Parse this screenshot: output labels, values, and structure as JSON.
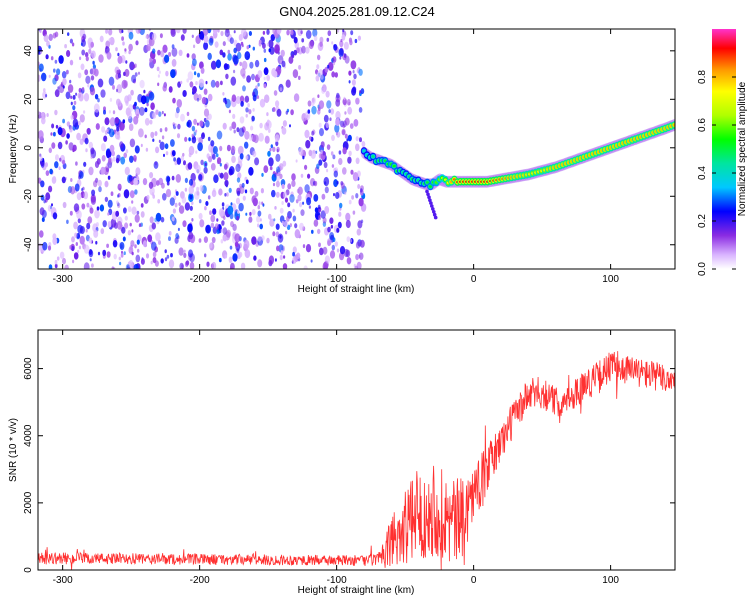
{
  "figure": {
    "title": "GN04.2025.281.09.12.C24"
  },
  "colors": {
    "snr_line": "#ff3030",
    "axis": "#000000",
    "spectro_noise": "#7a2cff"
  },
  "chart_data": [
    {
      "type": "heatmap",
      "name": "spectrogram",
      "xlabel": "Height of straight line (km)",
      "ylabel": "Frequency (Hz)",
      "xlim": [
        -318,
        147
      ],
      "ylim": [
        -50,
        49
      ],
      "xticks": [
        -300,
        -200,
        -100,
        0,
        100
      ],
      "yticks": [
        -40,
        -20,
        0,
        20,
        40
      ],
      "noise_region_x": [
        -318,
        -80
      ],
      "ridge": {
        "x": [
          -80,
          -75,
          -70,
          -65,
          -60,
          -55,
          -50,
          -45,
          -40,
          -35,
          -30,
          -25,
          -20,
          -15,
          -10,
          0,
          10,
          20,
          30,
          40,
          50,
          60,
          70,
          80,
          90,
          100,
          110,
          120,
          130,
          140,
          147
        ],
        "freq": [
          -2,
          -4,
          -5,
          -6,
          -7,
          -9,
          -11,
          -13,
          -14,
          -15,
          -15,
          -13,
          -14,
          -14,
          -14,
          -14,
          -14,
          -13,
          -12,
          -11,
          -9.5,
          -8,
          -6,
          -4,
          -2,
          0,
          2,
          4,
          6,
          8,
          9.5
        ],
        "amplitude": [
          0.4,
          0.45,
          0.5,
          0.5,
          0.55,
          0.5,
          0.45,
          0.5,
          0.45,
          0.5,
          0.55,
          0.6,
          0.7,
          0.85,
          0.9,
          0.9,
          0.9,
          0.85,
          0.8,
          0.75,
          0.75,
          0.8,
          0.8,
          0.8,
          0.8,
          0.8,
          0.8,
          0.8,
          0.8,
          0.8,
          0.8
        ]
      },
      "colorbar": {
        "label": "Normalized spectral amplitude",
        "range": [
          0.0,
          1.0
        ],
        "ticks": [
          "0.0",
          "0.2",
          "0.4",
          "0.6",
          "0.8"
        ]
      }
    },
    {
      "type": "line",
      "name": "snr",
      "xlabel": "Height of straight line (km)",
      "ylabel": "SNR (10 * v/v)",
      "xlim": [
        -318,
        147
      ],
      "ylim": [
        0,
        7150
      ],
      "xticks": [
        -300,
        -200,
        -100,
        0,
        100
      ],
      "yticks": [
        0,
        2000,
        4000,
        6000
      ],
      "envelope": {
        "x": [
          -318,
          -250,
          -150,
          -80,
          -66,
          -60,
          -50,
          -40,
          -30,
          -20,
          -10,
          0,
          10,
          20,
          30,
          40,
          50,
          60,
          70,
          80,
          90,
          100,
          110,
          120,
          130,
          140,
          147
        ],
        "mean": [
          350,
          330,
          300,
          280,
          320,
          900,
          1300,
          1600,
          1900,
          1500,
          1400,
          2300,
          3000,
          3800,
          4600,
          5200,
          5300,
          5000,
          5100,
          5500,
          5700,
          6050,
          6000,
          5900,
          5800,
          5700,
          5700
        ],
        "spread": [
          180,
          170,
          160,
          160,
          250,
          900,
          1200,
          1300,
          1500,
          1400,
          1300,
          900,
          700,
          600,
          550,
          500,
          500,
          450,
          450,
          450,
          500,
          500,
          450,
          450,
          450,
          450,
          450
        ]
      }
    }
  ]
}
